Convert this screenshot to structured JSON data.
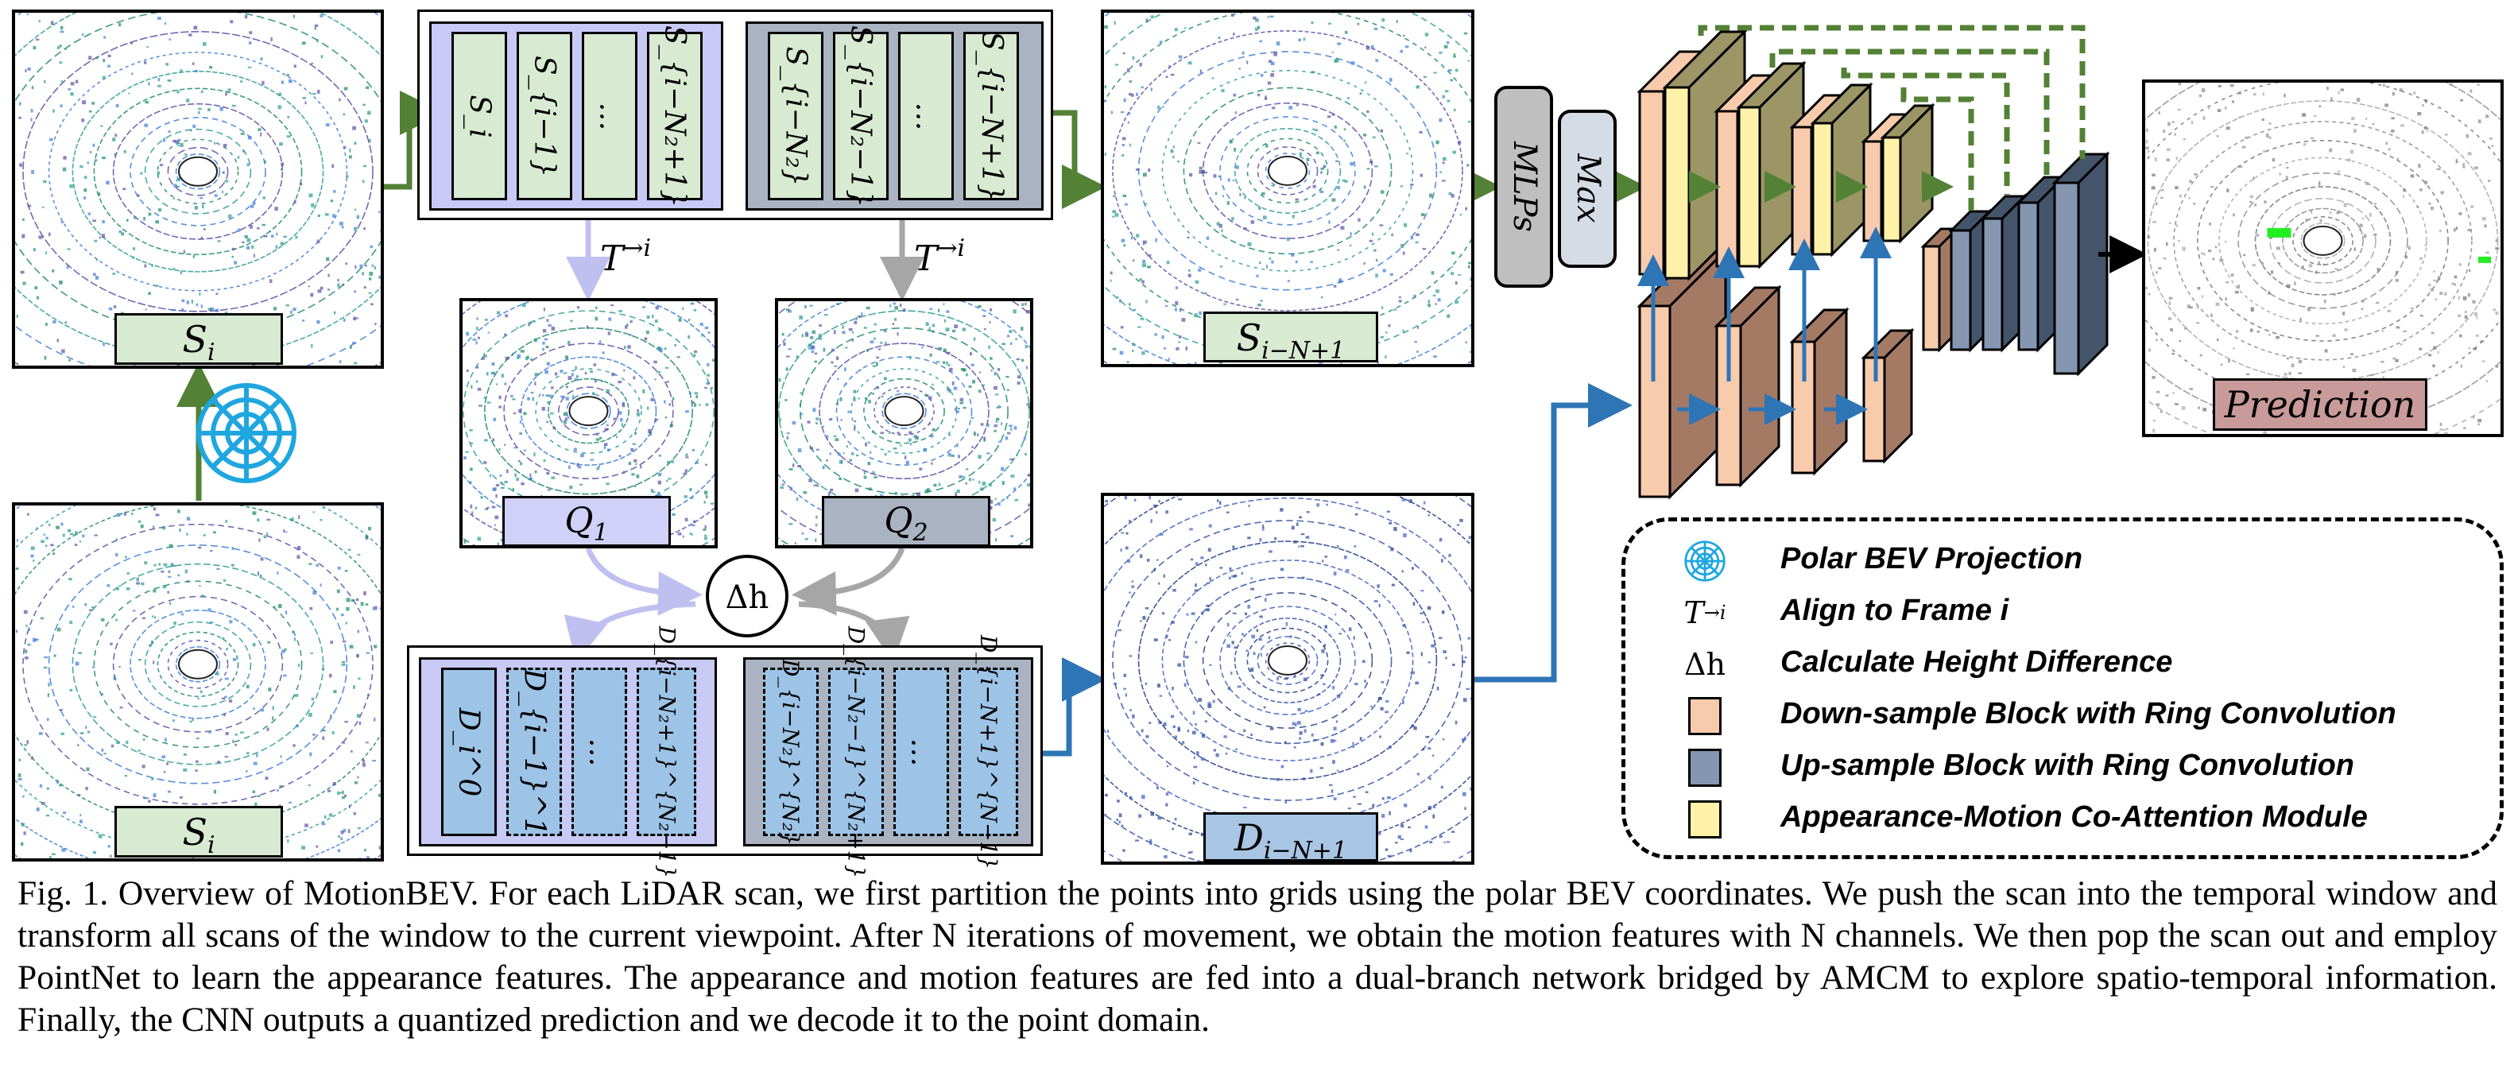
{
  "scans": {
    "si_top_label": "S",
    "si_top_sub": "i",
    "si_bottom_label": "S",
    "si_bottom_sub": "i",
    "s_out_label": "S",
    "s_out_sub": "i−N+1",
    "d_out_label": "D",
    "d_out_sub": "i−N+1",
    "q1_label": "Q",
    "q1_sub": "1",
    "q2_label": "Q",
    "q2_sub": "2",
    "prediction_label": "Prediction"
  },
  "seq_top": {
    "purple_slots": [
      "S_i",
      "S_{i−1}",
      "…",
      "S_{i−N₂+1}"
    ],
    "gray_slots": [
      "S_{i−N₂}",
      "S_{i−N₂−1}",
      "…",
      "S_{i−N+1}"
    ]
  },
  "seq_bottom": {
    "purple_slots": [
      "D_i^0",
      "D_{i−1}^1",
      "…",
      "D_{i−N₂+1}^{N₂−1}"
    ],
    "gray_slots": [
      "D_{i−N₂}^{N₂}",
      "D_{i−N₂−1}^{N₂+1}",
      "…",
      "D_{i−N+1}^{N−1}"
    ]
  },
  "transform_label": "T",
  "transform_sup": "→i",
  "delta_h": "Δh",
  "mlps_label": "MLPs",
  "max_label": "Max",
  "legend": {
    "items": [
      {
        "symbol": "polar-icon",
        "text": "Polar BEV Projection"
      },
      {
        "symbol": "T→i",
        "text": "Align to Frame i"
      },
      {
        "symbol": "Δh",
        "text": "Calculate Height Difference"
      },
      {
        "symbol": "#f8cbad",
        "text": "Down-sample Block with Ring Convolution"
      },
      {
        "symbol": "#8496b0",
        "text": "Up-sample Block with Ring Convolution"
      },
      {
        "symbol": "#fff2a8",
        "text": "Appearance-Motion Co-Attention Module"
      }
    ]
  },
  "colors": {
    "green_arrow": "#538135",
    "blue_arrow": "#2e75b6",
    "purple_fill": "#c9c9f5",
    "gray_fill": "#a9b3c1",
    "down_block": "#f8cbad",
    "down_block_dark": "#a57a65",
    "up_block": "#8496b0",
    "attention_block": "#fff2a8",
    "attention_dark": "#9c9565",
    "polar_icon": "#1fa6e0"
  },
  "caption": "Fig. 1.  Overview of MotionBEV. For each LiDAR scan, we first partition the points into grids using the polar BEV coordinates. We push the scan into the temporal window and transform all scans of the window to the current viewpoint. After N iterations of movement, we obtain the motion features with N channels. We then pop the scan out and employ PointNet to learn the appearance features. The appearance and motion features are fed into a dual-branch network bridged by AMCM to explore spatio-temporal information. Finally, the CNN outputs a quantized prediction and we decode it to the point domain."
}
